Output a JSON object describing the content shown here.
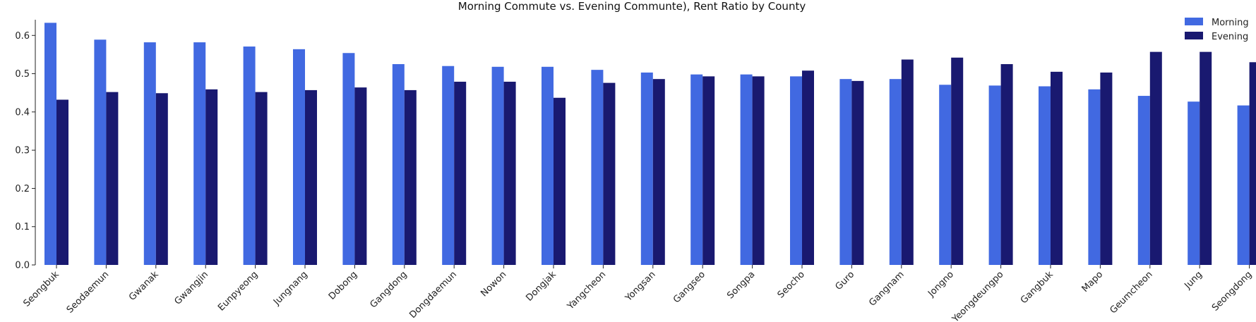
{
  "chart_data": {
    "type": "bar",
    "title": "Morning Commute vs. Evening Communte), Rent Ratio by County",
    "xlabel": "",
    "ylabel": "",
    "ylim": [
      0,
      0.63
    ],
    "yticks": [
      "0.0",
      "0.1",
      "0.2",
      "0.3",
      "0.4",
      "0.5",
      "0.6"
    ],
    "grid": false,
    "legend_position": "top-right",
    "categories": [
      "Seongbuk",
      "Seodaemun",
      "Gwanak",
      "Gwangjin",
      "Eunpyeong",
      "Jungnang",
      "Dobong",
      "Gangdong",
      "Dongdaemun",
      "Nowon",
      "Dongjak",
      "Yangcheon",
      "Yongsan",
      "Gangseo",
      "Songpa",
      "Seocho",
      "Guro",
      "Gangnam",
      "Jongno",
      "Yeongdeungpo",
      "Gangbuk",
      "Mapo",
      "Geumcheon",
      "Jung",
      "Seongdong"
    ],
    "series": [
      {
        "name": "Morning",
        "color": "#4169e1",
        "values": [
          0.633,
          0.589,
          0.582,
          0.582,
          0.571,
          0.564,
          0.554,
          0.525,
          0.52,
          0.518,
          0.518,
          0.51,
          0.503,
          0.498,
          0.498,
          0.493,
          0.486,
          0.486,
          0.471,
          0.469,
          0.467,
          0.459,
          0.442,
          0.427,
          0.417
        ]
      },
      {
        "name": "Evening",
        "color": "#191970",
        "values": [
          0.432,
          0.452,
          0.449,
          0.459,
          0.452,
          0.457,
          0.464,
          0.457,
          0.479,
          0.479,
          0.437,
          0.476,
          0.486,
          0.493,
          0.493,
          0.508,
          0.481,
          0.537,
          0.542,
          0.525,
          0.505,
          0.503,
          0.557,
          0.557,
          0.53
        ]
      }
    ]
  }
}
